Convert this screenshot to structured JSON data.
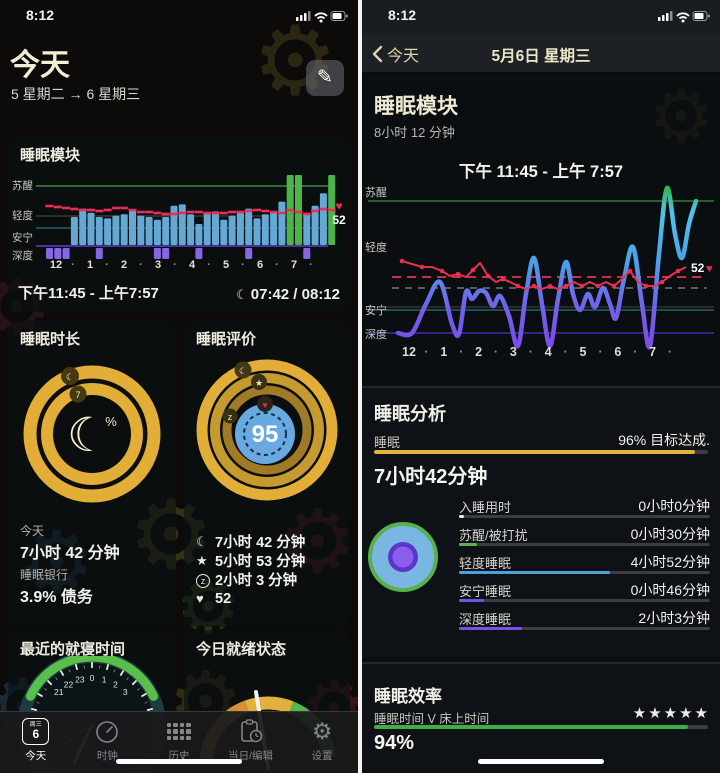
{
  "icons": {
    "pencil": "✎",
    "moon": "☾",
    "star": "★",
    "z": "z",
    "heart": "♥",
    "gear": "⚙",
    "pct": "%",
    "seven": "7"
  },
  "left": {
    "status_time": "8:12",
    "header": {
      "title": "今天",
      "subtitle": "5 星期二 → 6 星期三"
    },
    "module_card": {
      "title": "睡眠模块",
      "y_labels": [
        "苏醒",
        "轻度",
        "安宁",
        "深度"
      ],
      "x_labels": [
        "12",
        "·",
        "1",
        "·",
        "2",
        "·",
        "3",
        "·",
        "4",
        "·",
        "5",
        "·",
        "6",
        "·",
        "7",
        "·"
      ],
      "hr_label": "52",
      "footer_left": "下午11:45 - 上午7:57",
      "footer_right": "07:42 / 08:12",
      "bars": [
        {
          "h": 0,
          "d": 1
        },
        {
          "h": 0,
          "d": 1
        },
        {
          "h": 0,
          "d": 1
        },
        {
          "h": 0.4
        },
        {
          "h": 0.52
        },
        {
          "h": 0.46
        },
        {
          "h": 0.4,
          "d": 1
        },
        {
          "h": 0.38
        },
        {
          "h": 0.42
        },
        {
          "h": 0.44
        },
        {
          "h": 0.5
        },
        {
          "h": 0.42
        },
        {
          "h": 0.4
        },
        {
          "h": 0.36,
          "d": 1
        },
        {
          "h": 0.4,
          "d": 1
        },
        {
          "h": 0.56
        },
        {
          "h": 0.58
        },
        {
          "h": 0.44
        },
        {
          "h": 0.3,
          "d": 1
        },
        {
          "h": 0.46
        },
        {
          "h": 0.48
        },
        {
          "h": 0.36
        },
        {
          "h": 0.42
        },
        {
          "h": 0.46
        },
        {
          "h": 0.52,
          "d": 1
        },
        {
          "h": 0.38
        },
        {
          "h": 0.44
        },
        {
          "h": 0.48
        },
        {
          "h": 0.62
        },
        {
          "h": 1,
          "c": "g"
        },
        {
          "h": 1,
          "c": "g"
        },
        {
          "h": 0.46,
          "d": 1
        },
        {
          "h": 0.56
        },
        {
          "h": 0.74
        },
        {
          "h": 1,
          "c": "g"
        }
      ],
      "hr_y": [
        38,
        39,
        40,
        41,
        42,
        42,
        43,
        42,
        40,
        40,
        42,
        44,
        44,
        45,
        46,
        46,
        45,
        44,
        44,
        45,
        45,
        45,
        44,
        44,
        43,
        42,
        43,
        44,
        45,
        42,
        44,
        46,
        43,
        41,
        42
      ]
    },
    "duration_card": {
      "title": "睡眠时长",
      "cap_inner": "7",
      "center_pct": "%",
      "row1_label": "今天",
      "row1_value": "7小时 42 分钟",
      "row2_label": "睡眠银行",
      "row2_value": "3.9% 债务"
    },
    "score_card": {
      "title": "睡眠评价",
      "score": "95",
      "stats": [
        {
          "icon": "moon",
          "text": "7小时 42 分钟"
        },
        {
          "icon": "star",
          "text": "5小时 53 分钟"
        },
        {
          "icon": "z",
          "text": "2小时 3 分钟"
        },
        {
          "icon": "heart",
          "text": "52"
        }
      ]
    },
    "bedtime_card": {
      "title": "最近的就寝时间",
      "clock_numbers": [
        "21",
        "22",
        "23",
        "0",
        "1",
        "2",
        "3"
      ]
    },
    "readiness_card": {
      "title": "今日就绪状态"
    },
    "tabbar": {
      "items": [
        {
          "id": "today",
          "label": "今天",
          "active": true,
          "cal_top": "周三",
          "cal_num": "6"
        },
        {
          "id": "clock",
          "label": "时钟",
          "active": false
        },
        {
          "id": "history",
          "label": "历史",
          "active": false
        },
        {
          "id": "day-edit",
          "label": "当日/编辑",
          "active": false
        },
        {
          "id": "settings",
          "label": "设置",
          "active": false
        }
      ]
    }
  },
  "right": {
    "status_time": "8:12",
    "nav": {
      "back_label": "今天",
      "title": "5月6日 星期三"
    },
    "module": {
      "title": "睡眠模块",
      "subtitle": "8小时 12 分钟"
    },
    "chart": {
      "title": "下午 11:45 - 上午 7:57",
      "y_labels": [
        "苏醒",
        "轻度",
        "安宁",
        "深度"
      ],
      "x_labels": [
        "12",
        "·",
        "1",
        "·",
        "2",
        "·",
        "3",
        "·",
        "4",
        "·",
        "5",
        "·",
        "6",
        "·",
        "7",
        "·"
      ],
      "hr_label": "52",
      "sleep_points": [
        [
          36,
          151
        ],
        [
          50,
          151
        ],
        [
          64,
          122
        ],
        [
          78,
          100
        ],
        [
          90,
          142
        ],
        [
          97,
          152
        ],
        [
          104,
          110
        ],
        [
          110,
          117
        ],
        [
          117,
          109
        ],
        [
          124,
          111
        ],
        [
          131,
          124
        ],
        [
          138,
          114
        ],
        [
          147,
          134
        ],
        [
          156,
          164
        ],
        [
          164,
          112
        ],
        [
          172,
          76
        ],
        [
          180,
          122
        ],
        [
          188,
          164
        ],
        [
          196,
          117
        ],
        [
          204,
          80
        ],
        [
          211,
          112
        ],
        [
          218,
          128
        ],
        [
          226,
          112
        ],
        [
          233,
          125
        ],
        [
          241,
          106
        ],
        [
          248,
          122
        ],
        [
          254,
          136
        ],
        [
          262,
          97
        ],
        [
          271,
          65
        ],
        [
          280,
          122
        ],
        [
          288,
          164
        ],
        [
          297,
          72
        ],
        [
          305,
          6
        ],
        [
          313,
          52
        ],
        [
          320,
          76
        ],
        [
          327,
          42
        ],
        [
          334,
          19
        ]
      ],
      "hr_points": [
        [
          40,
          79
        ],
        [
          50,
          82
        ],
        [
          60,
          85
        ],
        [
          70,
          85
        ],
        [
          80,
          89
        ],
        [
          88,
          94
        ],
        [
          96,
          92
        ],
        [
          104,
          95
        ],
        [
          111,
          88
        ],
        [
          118,
          81
        ],
        [
          126,
          94
        ],
        [
          134,
          100
        ],
        [
          141,
          97
        ],
        [
          148,
          100
        ],
        [
          156,
          104
        ],
        [
          164,
          107
        ],
        [
          172,
          104
        ],
        [
          180,
          107
        ],
        [
          188,
          104
        ],
        [
          196,
          107
        ],
        [
          204,
          104
        ],
        [
          212,
          100
        ],
        [
          220,
          104
        ],
        [
          228,
          100
        ],
        [
          236,
          104
        ],
        [
          244,
          100
        ],
        [
          252,
          104
        ],
        [
          260,
          97
        ],
        [
          268,
          89
        ],
        [
          276,
          100
        ],
        [
          284,
          104
        ],
        [
          292,
          104
        ],
        [
          300,
          100
        ],
        [
          308,
          94
        ],
        [
          316,
          89
        ],
        [
          324,
          85
        ]
      ]
    },
    "analysis": {
      "title": "睡眠分析",
      "metric_label": "睡眠",
      "metric_right": "96% 目标达成.",
      "goal_pct": 96,
      "total": "7小时42分钟",
      "items": [
        {
          "label": "入睡用时",
          "value": "0小时0分钟",
          "pct": 2,
          "color": "#e8e8e6"
        },
        {
          "label": "苏醒/被打扰",
          "value": "0小时30分钟",
          "pct": 7,
          "color": "#56b551"
        },
        {
          "label": "轻度睡眠",
          "value": "4小时52分钟",
          "pct": 60,
          "color": "#4f9fd8"
        },
        {
          "label": "安宁睡眠",
          "value": "0小时46分钟",
          "pct": 10,
          "color": "#6a55e8"
        },
        {
          "label": "深度睡眠",
          "value": "2小时3分钟",
          "pct": 25,
          "color": "#7a4fe8"
        }
      ]
    },
    "efficiency": {
      "title": "睡眠效率",
      "subtitle": "睡眠时间 V 床上时间",
      "stars": "★★★★★",
      "pct": 94,
      "pct_label": "94%"
    }
  },
  "chart_data": [
    {
      "type": "bar",
      "title": "睡眠模块",
      "x_labels": [
        "12",
        "1",
        "2",
        "3",
        "4",
        "5",
        "6",
        "7"
      ],
      "stages": [
        "苏醒",
        "轻度",
        "安宁",
        "深度"
      ],
      "sleep_start": "下午11:45",
      "sleep_end": "上午7:57",
      "asleep": "07:42",
      "in_bed": "08:12",
      "heart_rate_end": 52
    },
    {
      "type": "line",
      "title": "下午 11:45 - 上午 7:57",
      "x_labels": [
        "12",
        "1",
        "2",
        "3",
        "4",
        "5",
        "6",
        "7"
      ],
      "stages": [
        "苏醒",
        "轻度",
        "安宁",
        "深度"
      ],
      "heart_rate_end": 52,
      "stage_durations": {
        "入睡用时": "0小时0分钟",
        "苏醒/被打扰": "0小时30分钟",
        "轻度睡眠": "4小时52分钟",
        "安宁睡眠": "0小时46分钟",
        "深度睡眠": "2小时3分钟"
      },
      "total_sleep": "7小时42分钟",
      "goal_pct": 96,
      "efficiency_pct": 94,
      "score": 95
    }
  ]
}
